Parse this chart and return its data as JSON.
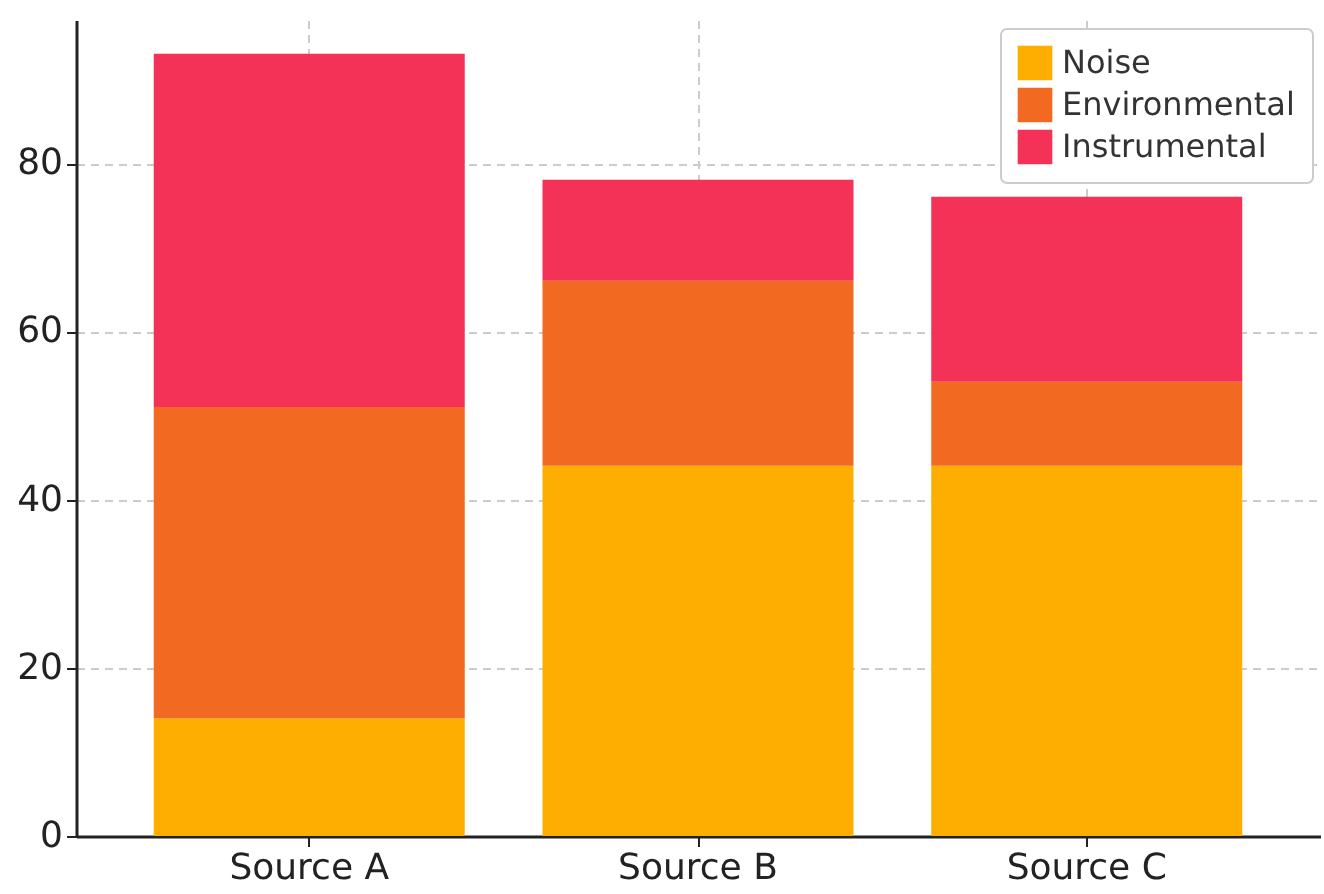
{
  "chart_data": {
    "type": "bar",
    "stacked": true,
    "categories": [
      "Source A",
      "Source B",
      "Source C"
    ],
    "series": [
      {
        "name": "Noise",
        "color": "#fdae00",
        "values": [
          14,
          44,
          44
        ]
      },
      {
        "name": "Environmental",
        "color": "#f26a21",
        "values": [
          37,
          22,
          10
        ]
      },
      {
        "name": "Instrumental",
        "color": "#f43157",
        "values": [
          42,
          12,
          22
        ]
      }
    ],
    "ylim": [
      0,
      97
    ],
    "yticks": [
      0,
      20,
      40,
      60,
      80
    ],
    "grid": true,
    "legend": "top right"
  }
}
